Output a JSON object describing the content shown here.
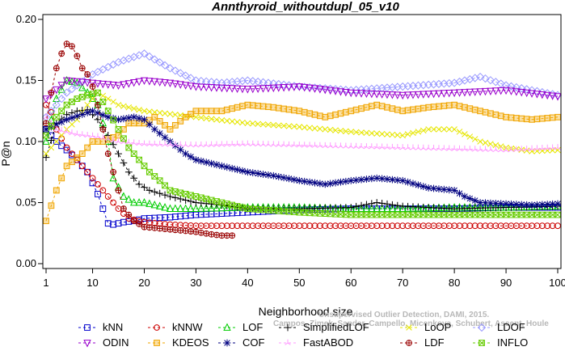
{
  "chart_data": {
    "type": "line",
    "title": "Annthyroid_withoutdupl_05_v10",
    "xlabel": "Neighborhood size",
    "ylabel": "P@n",
    "xlim": [
      1,
      100
    ],
    "ylim": [
      0,
      0.2
    ],
    "xticks": [
      1,
      10,
      20,
      30,
      40,
      50,
      60,
      70,
      80,
      90,
      100
    ],
    "yticks": [
      "0.00",
      "0.05",
      "0.10",
      "0.15",
      "0.20"
    ],
    "grid": false,
    "legend_position": "bottom",
    "credit_line1": "Unsupervised Outlier Detection, DAMI, 2015.",
    "credit_line2": "Campos, Zimek, Sander, Campello, Micenkova, Schubert, Assent, Houle",
    "series": [
      {
        "name": "kNN",
        "color": "#0000cc",
        "marker": "square",
        "x": [
          1,
          3,
          5,
          7,
          9,
          11,
          13,
          14,
          16,
          18,
          20,
          25,
          30,
          40,
          50,
          60,
          70,
          80,
          90,
          100
        ],
        "y": [
          0.11,
          0.1,
          0.093,
          0.085,
          0.075,
          0.057,
          0.033,
          0.032,
          0.034,
          0.035,
          0.037,
          0.038,
          0.04,
          0.042,
          0.044,
          0.045,
          0.045,
          0.045,
          0.046,
          0.046
        ]
      },
      {
        "name": "kNNW",
        "color": "#cc0000",
        "marker": "circle",
        "x": [
          1,
          2,
          3,
          5,
          7,
          9,
          11,
          13,
          15,
          17,
          20,
          25,
          30,
          40,
          50,
          60,
          70,
          80,
          90,
          100
        ],
        "y": [
          0.13,
          0.124,
          0.11,
          0.095,
          0.085,
          0.075,
          0.065,
          0.055,
          0.045,
          0.037,
          0.034,
          0.032,
          0.031,
          0.031,
          0.031,
          0.031,
          0.031,
          0.031,
          0.031,
          0.031
        ]
      },
      {
        "name": "LOF",
        "color": "#00cc00",
        "marker": "triangle-up",
        "x": [
          1,
          3,
          5,
          7,
          9,
          11,
          13,
          14,
          16,
          18,
          20,
          25,
          30,
          40,
          50,
          60,
          70,
          80,
          90,
          100
        ],
        "y": [
          0.1,
          0.135,
          0.15,
          0.148,
          0.14,
          0.13,
          0.1,
          0.07,
          0.055,
          0.05,
          0.05,
          0.045,
          0.045,
          0.046,
          0.046,
          0.045,
          0.045,
          0.046,
          0.046,
          0.047
        ]
      },
      {
        "name": "SimplifiedLOF",
        "color": "#000000",
        "marker": "plus",
        "x": [
          1,
          3,
          5,
          7,
          9,
          11,
          13,
          15,
          17,
          19,
          21,
          25,
          30,
          35,
          40,
          50,
          60,
          65,
          70,
          80,
          90,
          100
        ],
        "y": [
          0.087,
          0.115,
          0.122,
          0.125,
          0.126,
          0.118,
          0.105,
          0.09,
          0.075,
          0.065,
          0.06,
          0.055,
          0.05,
          0.048,
          0.045,
          0.045,
          0.046,
          0.05,
          0.047,
          0.045,
          0.046,
          0.047
        ]
      },
      {
        "name": "LoOP",
        "color": "#e6e600",
        "marker": "x",
        "x": [
          1,
          3,
          5,
          7,
          9,
          11,
          13,
          15,
          20,
          30,
          40,
          50,
          60,
          70,
          75,
          80,
          85,
          90,
          95,
          100
        ],
        "y": [
          0.09,
          0.1,
          0.11,
          0.118,
          0.13,
          0.14,
          0.135,
          0.13,
          0.125,
          0.12,
          0.115,
          0.112,
          0.108,
          0.105,
          0.11,
          0.11,
          0.1,
          0.095,
          0.092,
          0.093
        ]
      },
      {
        "name": "LDOF",
        "color": "#9999ff",
        "marker": "diamond",
        "x": [
          1,
          5,
          10,
          15,
          20,
          25,
          30,
          35,
          40,
          50,
          60,
          70,
          80,
          85,
          90,
          95,
          100
        ],
        "y": [
          0.12,
          0.14,
          0.155,
          0.165,
          0.172,
          0.16,
          0.15,
          0.148,
          0.15,
          0.145,
          0.142,
          0.145,
          0.148,
          0.153,
          0.146,
          0.142,
          0.138
        ]
      },
      {
        "name": "ODIN",
        "color": "#9900cc",
        "marker": "triangle-down",
        "x": [
          1,
          5,
          10,
          15,
          20,
          25,
          30,
          40,
          50,
          60,
          70,
          80,
          90,
          100
        ],
        "y": [
          0.135,
          0.15,
          0.148,
          0.146,
          0.15,
          0.148,
          0.145,
          0.143,
          0.145,
          0.14,
          0.138,
          0.14,
          0.142,
          0.137
        ]
      },
      {
        "name": "KDEOS",
        "color": "#f0a500",
        "marker": "square-filled",
        "x": [
          1,
          3,
          5,
          8,
          10,
          12,
          15,
          17,
          20,
          22,
          25,
          28,
          30,
          35,
          40,
          45,
          50,
          55,
          60,
          65,
          70,
          75,
          80,
          85,
          90,
          95,
          100
        ],
        "y": [
          0.035,
          0.06,
          0.08,
          0.09,
          0.1,
          0.1,
          0.105,
          0.115,
          0.115,
          0.12,
          0.11,
          0.12,
          0.125,
          0.125,
          0.13,
          0.128,
          0.125,
          0.12,
          0.125,
          0.13,
          0.125,
          0.128,
          0.13,
          0.125,
          0.12,
          0.118,
          0.12
        ]
      },
      {
        "name": "COF",
        "color": "#000080",
        "marker": "asterisk",
        "x": [
          1,
          5,
          10,
          13,
          15,
          18,
          20,
          22,
          25,
          28,
          30,
          35,
          40,
          45,
          50,
          55,
          60,
          65,
          70,
          75,
          80,
          82,
          85,
          90,
          95,
          100
        ],
        "y": [
          0.11,
          0.118,
          0.125,
          0.12,
          0.118,
          0.12,
          0.118,
          0.11,
          0.1,
          0.09,
          0.085,
          0.08,
          0.075,
          0.072,
          0.068,
          0.065,
          0.068,
          0.07,
          0.068,
          0.062,
          0.06,
          0.055,
          0.05,
          0.049,
          0.048,
          0.049
        ]
      },
      {
        "name": "FastABOD",
        "color": "#ff99ff",
        "marker": "tri",
        "x": [
          1,
          3,
          5,
          7,
          9,
          11,
          13,
          15,
          20,
          30,
          40,
          50,
          60,
          70,
          80,
          90,
          100
        ],
        "y": [
          0.12,
          0.11,
          0.108,
          0.106,
          0.105,
          0.104,
          0.102,
          0.1,
          0.098,
          0.097,
          0.098,
          0.097,
          0.096,
          0.095,
          0.094,
          0.093,
          0.095
        ]
      },
      {
        "name": "LDF",
        "color": "#990000",
        "marker": "circle-plus",
        "x": [
          1,
          2,
          3,
          4,
          5,
          6,
          7,
          8,
          9,
          10,
          11,
          12,
          13,
          14,
          15,
          16,
          18,
          20,
          25,
          30,
          33,
          35,
          37
        ],
        "y": [
          0.115,
          0.14,
          0.16,
          0.172,
          0.18,
          0.178,
          0.17,
          0.16,
          0.155,
          0.145,
          0.13,
          0.11,
          0.09,
          0.075,
          0.06,
          0.045,
          0.035,
          0.03,
          0.028,
          0.026,
          0.024,
          0.023,
          0.023
        ]
      },
      {
        "name": "INFLO",
        "color": "#66cc00",
        "marker": "square-x",
        "x": [
          1,
          3,
          5,
          7,
          9,
          11,
          13,
          15,
          17,
          19,
          21,
          23,
          25,
          30,
          35,
          40,
          50,
          60,
          70,
          80,
          90,
          100
        ],
        "y": [
          0.105,
          0.12,
          0.13,
          0.135,
          0.138,
          0.14,
          0.125,
          0.11,
          0.095,
          0.085,
          0.075,
          0.068,
          0.06,
          0.055,
          0.05,
          0.045,
          0.042,
          0.04,
          0.04,
          0.04,
          0.04,
          0.04
        ]
      }
    ]
  }
}
